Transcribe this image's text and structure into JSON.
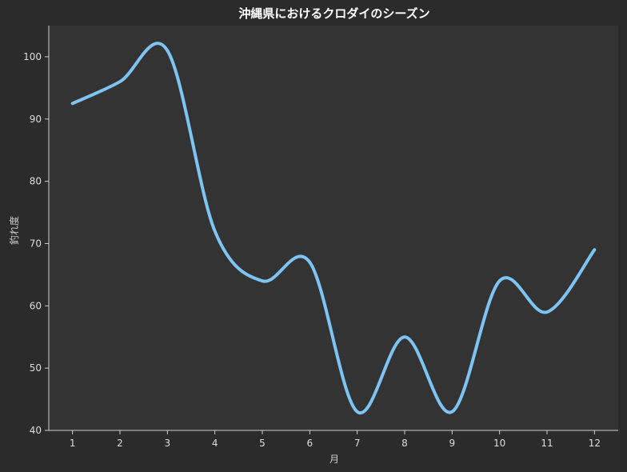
{
  "chart_data": {
    "type": "line",
    "title": "沖縄県におけるクロダイのシーズン",
    "xlabel": "月",
    "ylabel": "釣れ度",
    "x": [
      1,
      2,
      3,
      4,
      5,
      6,
      7,
      8,
      9,
      10,
      11,
      12
    ],
    "series": [
      {
        "values": [
          92.5,
          96,
          101,
          72,
          64,
          67,
          43,
          55,
          43,
          64,
          59,
          69
        ]
      }
    ],
    "xlim": [
      0.5,
      12.5
    ],
    "ylim": [
      40,
      105
    ],
    "yticks": [
      40,
      50,
      60,
      70,
      80,
      90,
      100
    ],
    "grid": false,
    "colors": {
      "background": "#2b2b2b",
      "plot_background": "#333333",
      "line": "#7ec4f2"
    }
  }
}
